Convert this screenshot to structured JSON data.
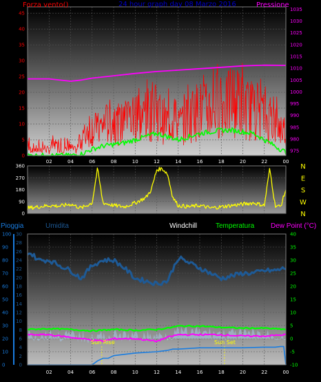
{
  "colors": {
    "wind": "#ff0000",
    "gust": "#ff0000",
    "avg_wind": "#00ff00",
    "pressure": "#ff00ff",
    "direction": "#ffff00",
    "rain": "#1a7de0",
    "humidity": "#1e5a96",
    "windchill": "#ffffff",
    "temperature": "#00ff00",
    "dewpoint": "#ff00ff",
    "title": "#0000cc",
    "sun_marker": "#ffff00",
    "tick_wind": "#ff0000",
    "tick_press": "#ff00ff",
    "tick_temp": "#00ff00",
    "tick_rain": "#1a7de0",
    "tick_hum": "#1e5a96"
  },
  "header": {
    "wind_label": "Forza vento()",
    "title": "24 hour graph day  08 Marzo 2016",
    "pressure_label": "Pressione"
  },
  "legend": {
    "rain": "Pioggia",
    "humidity": "Umidita",
    "windchill": "Windchill",
    "temperature": "Temperatura",
    "dewpoint": "Dew Point (°C)"
  },
  "annotations": {
    "sunrise": "Sun Rise",
    "sunset": "Sun Set"
  },
  "chart_data": [
    {
      "type": "line",
      "panel": "wind-pressure",
      "xlim": [
        0,
        24
      ],
      "x_ticks": [
        "02",
        "04",
        "06",
        "08",
        "10",
        "12",
        "14",
        "16",
        "18",
        "20",
        "22",
        "00"
      ],
      "y_left": {
        "ticks": [
          "0",
          "5",
          "10",
          "15",
          "20",
          "25",
          "30",
          "35",
          "40",
          "45"
        ],
        "lim": [
          0,
          47
        ]
      },
      "y_right": {
        "ticks": [
          "975",
          "980",
          "985",
          "990",
          "995",
          "1000",
          "1005",
          "1010",
          "1015",
          "1020",
          "1025",
          "1030",
          "1035"
        ],
        "lim": [
          973,
          1036
        ]
      },
      "series": [
        {
          "name": "Forza vento()",
          "axis": "left",
          "x": [
            0,
            0.5,
            1,
            1.5,
            2,
            2.5,
            3,
            3.5,
            4,
            4.5,
            5,
            5.5,
            6,
            6.5,
            7,
            7.5,
            8,
            8.5,
            9,
            9.5,
            10,
            10.5,
            11,
            11.5,
            12,
            12.5,
            13,
            13.5,
            14,
            14.5,
            15,
            15.5,
            16,
            16.5,
            17,
            17.5,
            18,
            18.5,
            19,
            19.5,
            20,
            20.5,
            21,
            21.5,
            22,
            22.5,
            23,
            23.5,
            24
          ],
          "values": [
            2,
            3,
            2,
            3,
            2,
            4,
            3,
            2,
            3,
            2,
            6,
            9,
            11,
            10,
            12,
            13,
            14,
            12,
            13,
            15,
            12,
            14,
            16,
            17,
            18,
            14,
            13,
            14,
            12,
            13,
            15,
            17,
            18,
            17,
            19,
            20,
            21,
            19,
            22,
            21,
            20,
            18,
            17,
            19,
            15,
            14,
            12,
            11,
            10
          ]
        },
        {
          "name": "Gust",
          "axis": "left",
          "x": [
            0,
            1,
            2,
            3,
            4,
            5,
            6,
            7,
            8,
            9,
            10,
            11,
            12,
            13,
            14,
            15,
            16,
            17,
            18,
            19,
            20,
            21,
            22,
            23,
            24
          ],
          "values": [
            6,
            5,
            6,
            7,
            5,
            9,
            15,
            18,
            17,
            20,
            22,
            24,
            26,
            23,
            19,
            24,
            27,
            29,
            31,
            28,
            30,
            26,
            24,
            20,
            16
          ]
        },
        {
          "name": "Average",
          "axis": "left",
          "x": [
            0,
            1,
            2,
            3,
            4,
            5,
            6,
            7,
            8,
            9,
            10,
            11,
            12,
            13,
            14,
            15,
            16,
            17,
            18,
            19,
            20,
            21,
            22,
            23,
            24
          ],
          "values": [
            0,
            0,
            0,
            0,
            0,
            0.5,
            2,
            3,
            3.5,
            4,
            5,
            6,
            7,
            6,
            5,
            6,
            7,
            7.5,
            8,
            8,
            7.5,
            7,
            5,
            3,
            1
          ]
        },
        {
          "name": "Pressione",
          "axis": "right",
          "x": [
            0,
            2,
            4,
            5,
            6,
            8,
            10,
            12,
            14,
            16,
            18,
            20,
            22,
            24
          ],
          "values": [
            1005.5,
            1005.5,
            1004.5,
            1005,
            1005.8,
            1006.8,
            1007.8,
            1008.6,
            1009.2,
            1009.8,
            1010.4,
            1011,
            1011.3,
            1011.2
          ]
        }
      ]
    },
    {
      "type": "line",
      "panel": "wind-direction",
      "xlim": [
        0,
        24
      ],
      "y_left": {
        "ticks": [
          "0",
          "90",
          "180",
          "270",
          "360"
        ],
        "lim": [
          0,
          360
        ]
      },
      "y_right_labels": [
        "N",
        "W",
        "S",
        "E",
        "N"
      ],
      "series": [
        {
          "name": "Direzione",
          "x": [
            0,
            1,
            2,
            3,
            4,
            5,
            6,
            6.5,
            7,
            8,
            9,
            10,
            11,
            11.5,
            12,
            12.5,
            13,
            13.5,
            14,
            15,
            16,
            17,
            18,
            19,
            20,
            21,
            22,
            22.5,
            23,
            23.5,
            24
          ],
          "values": [
            40,
            50,
            60,
            55,
            70,
            40,
            80,
            340,
            80,
            60,
            50,
            80,
            120,
            180,
            330,
            340,
            300,
            120,
            60,
            50,
            60,
            40,
            50,
            60,
            70,
            80,
            60,
            340,
            60,
            50,
            180
          ]
        }
      ]
    },
    {
      "type": "line",
      "panel": "temperature-humidity-rain",
      "xlim": [
        0,
        24
      ],
      "x_ticks": [
        "02",
        "04",
        "06",
        "08",
        "10",
        "12",
        "14",
        "16",
        "18",
        "20",
        "22",
        "00"
      ],
      "y_rain": {
        "ticks": [
          "0",
          "10",
          "20",
          "30",
          "40",
          "50",
          "60",
          "70",
          "80",
          "90",
          "100"
        ],
        "lim": [
          0,
          100
        ]
      },
      "y_humidity": {
        "ticks": [
          "0",
          "2",
          "4",
          "6",
          "8",
          "10",
          "12",
          "14",
          "16",
          "18",
          "20",
          "22",
          "24",
          "26",
          "28",
          "30"
        ],
        "lim": [
          0,
          30
        ]
      },
      "y_temp": {
        "ticks": [
          "-10",
          "-5",
          "0",
          "5",
          "10",
          "15",
          "20",
          "25",
          "30",
          "35",
          "40"
        ],
        "lim": [
          -10,
          40
        ]
      },
      "series": [
        {
          "name": "Pioggia",
          "axis": "rain",
          "x": [
            0,
            2,
            4,
            5,
            6,
            6.5,
            7,
            7.5,
            8,
            10,
            12,
            13,
            13.5,
            14,
            16,
            18,
            20,
            22,
            23,
            23.5,
            23.8,
            24
          ],
          "values": [
            0,
            0,
            0,
            0,
            0,
            3,
            5,
            5,
            7,
            9,
            10,
            11,
            12,
            12,
            13,
            13,
            13,
            13.5,
            13.5,
            14,
            14,
            0
          ]
        },
        {
          "name": "Umidita",
          "axis": "temp",
          "x": [
            0,
            0.5,
            1,
            2,
            3,
            4,
            5,
            6,
            7,
            8,
            9,
            10,
            11,
            12,
            13,
            14,
            15,
            16,
            17,
            18,
            19,
            20,
            21,
            22,
            23,
            24
          ],
          "values": [
            33,
            32,
            30,
            30,
            28,
            26,
            23,
            28,
            30,
            30,
            27,
            23,
            22,
            21,
            22,
            31,
            29,
            27,
            25,
            23,
            24,
            25,
            25,
            26,
            26,
            27
          ]
        },
        {
          "name": "Windchill",
          "axis": "temp",
          "x": [
            0,
            24
          ],
          "values": [
            0,
            0
          ]
        },
        {
          "name": "Temperatura",
          "axis": "temp",
          "x": [
            0,
            2,
            4,
            6,
            8,
            10,
            12,
            13,
            14,
            16,
            18,
            20,
            22,
            24
          ],
          "values": [
            3.5,
            3.8,
            3.5,
            3,
            3.5,
            3.2,
            3.5,
            4,
            4.8,
            4.8,
            4.3,
            4,
            4,
            3.5
          ]
        },
        {
          "name": "Dew Point (°C)",
          "axis": "temp",
          "x": [
            0,
            2,
            4,
            6,
            7,
            8,
            10,
            12,
            13,
            14,
            16,
            18,
            20,
            22,
            24
          ],
          "values": [
            1.5,
            1.5,
            0.5,
            -0.5,
            -1,
            0,
            0,
            -1,
            0.5,
            1.5,
            1.5,
            1.5,
            1,
            1,
            1.5
          ]
        }
      ]
    }
  ]
}
